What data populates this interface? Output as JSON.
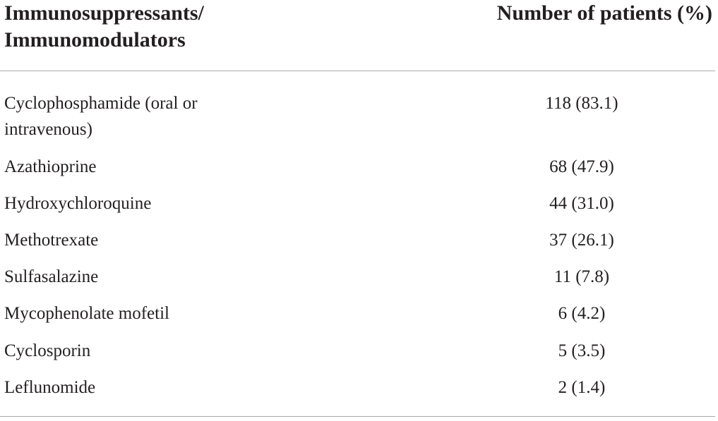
{
  "table": {
    "header": {
      "col1_line1": "Immunosuppressants/",
      "col1_line2": "Immunomodulators",
      "col2": "Number of patients (%)"
    },
    "rows": [
      {
        "name": "Cyclophosphamide (oral or intravenous)",
        "value": "118 (83.1)"
      },
      {
        "name": "Azathioprine",
        "value": "68 (47.9)"
      },
      {
        "name": "Hydroxychloroquine",
        "value": "44 (31.0)"
      },
      {
        "name": "Methotrexate",
        "value": "37 (26.1)"
      },
      {
        "name": "Sulfasalazine",
        "value": "11 (7.8)"
      },
      {
        "name": "Mycophenolate mofetil",
        "value": "6 (4.2)"
      },
      {
        "name": "Cyclosporin",
        "value": "5 (3.5)"
      },
      {
        "name": "Leflunomide",
        "value": "2 (1.4)"
      }
    ]
  }
}
